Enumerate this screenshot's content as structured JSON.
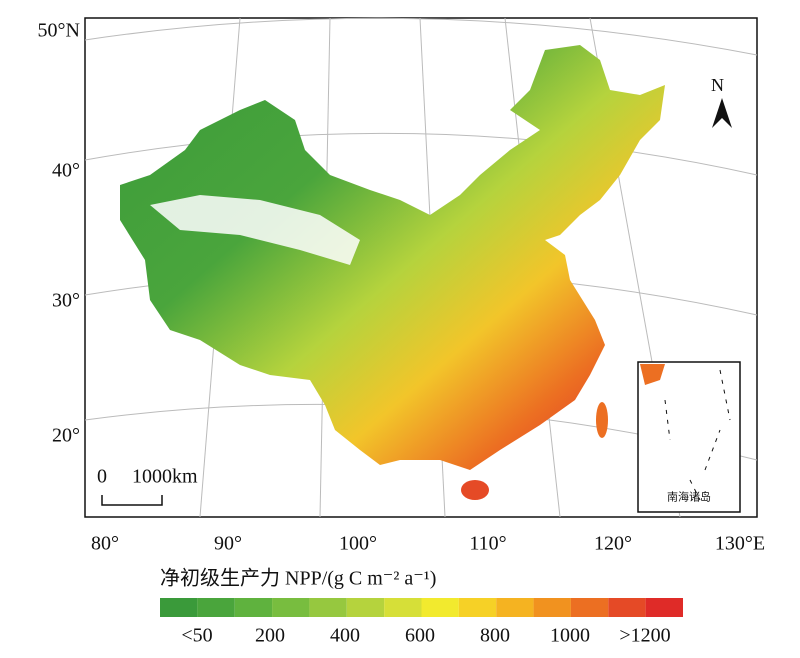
{
  "map": {
    "lat_labels": [
      "50°N",
      "40°",
      "30°",
      "20°"
    ],
    "lon_labels": [
      "80°",
      "90°",
      "100°",
      "110°",
      "120°",
      "130°E"
    ],
    "scale_bar": {
      "zero": "0",
      "distance": "1000km"
    },
    "north": "N",
    "inset_label": "南海诸岛",
    "legend": {
      "title": "净初级生产力 NPP/(g C m⁻² a⁻¹)",
      "labels": [
        "<50",
        "200",
        "400",
        "600",
        "800",
        "1000",
        ">1200"
      ],
      "colors": [
        "#3a9a3a",
        "#4aa53c",
        "#5fb23e",
        "#78bd3f",
        "#96c83f",
        "#b5d33d",
        "#d6df38",
        "#f2ea2e",
        "#f6d126",
        "#f5b321",
        "#f1921f",
        "#ec6f22",
        "#e54a26",
        "#df2b28"
      ]
    }
  }
}
